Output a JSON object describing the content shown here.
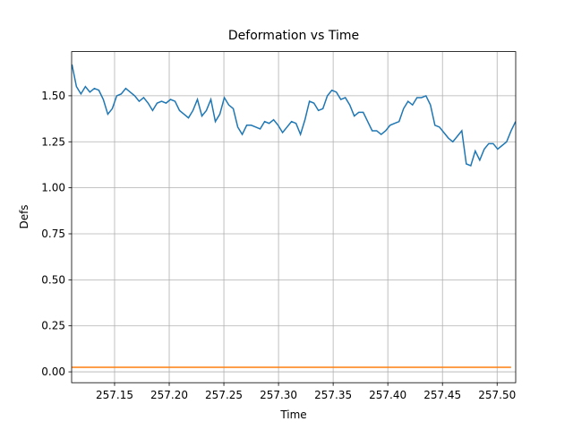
{
  "chart_data": {
    "type": "line",
    "title": "Deformation vs Time",
    "xlabel": "Time",
    "ylabel": "Defs",
    "xlim": [
      257.1107,
      257.517
    ],
    "ylim": [
      -0.059,
      1.74
    ],
    "xticks": [
      257.15,
      {
        "value": 257.2,
        "label": "257.20"
      },
      257.25,
      {
        "value": 257.3,
        "label": "257.30"
      },
      257.35,
      {
        "value": 257.4,
        "label": "257.40"
      },
      257.45,
      {
        "value": 257.5,
        "label": "257.50"
      }
    ],
    "yticks": [
      {
        "value": 0,
        "label": "0.00"
      },
      0.25,
      {
        "value": 0.5,
        "label": "0.50"
      },
      0.75,
      {
        "value": 1,
        "label": "1.00"
      },
      1.25,
      {
        "value": 1.5,
        "label": "1.50"
      }
    ],
    "grid": true,
    "series": [
      {
        "color": "#1f77b4",
        "x": [
          257.111,
          257.1151,
          257.1192,
          257.1233,
          257.1274,
          257.1315,
          257.1356,
          257.1397,
          257.1438,
          257.1479,
          257.152,
          257.1561,
          257.1602,
          257.1643,
          257.1684,
          257.1725,
          257.1766,
          257.1807,
          257.1848,
          257.1889,
          257.193,
          257.1971,
          257.2012,
          257.2053,
          257.2094,
          257.2135,
          257.2176,
          257.2217,
          257.2258,
          257.2299,
          257.234,
          257.2381,
          257.2422,
          257.2463,
          257.2504,
          257.2545,
          257.2586,
          257.2627,
          257.2668,
          257.2709,
          257.275,
          257.2791,
          257.2832,
          257.2873,
          257.2914,
          257.2955,
          257.2996,
          257.3037,
          257.3078,
          257.3119,
          257.316,
          257.3201,
          257.3242,
          257.3283,
          257.3324,
          257.3365,
          257.3406,
          257.3447,
          257.3488,
          257.3529,
          257.357,
          257.3611,
          257.3652,
          257.3693,
          257.3734,
          257.3775,
          257.3816,
          257.3857,
          257.3898,
          257.3939,
          257.398,
          257.4021,
          257.4062,
          257.4103,
          257.4144,
          257.4185,
          257.4226,
          257.4267,
          257.4308,
          257.4349,
          257.439,
          257.4431,
          257.4472,
          257.4513,
          257.4554,
          257.4595,
          257.4636,
          257.4677,
          257.4718,
          257.4759,
          257.48,
          257.4841,
          257.4882,
          257.4923,
          257.4964,
          257.5005,
          257.5046,
          257.5087,
          257.5128,
          257.5169
        ],
        "values": [
          1.67,
          1.55,
          1.51,
          1.55,
          1.52,
          1.54,
          1.53,
          1.48,
          1.4,
          1.43,
          1.5,
          1.51,
          1.54,
          1.52,
          1.5,
          1.47,
          1.49,
          1.46,
          1.42,
          1.46,
          1.47,
          1.46,
          1.48,
          1.47,
          1.42,
          1.4,
          1.38,
          1.42,
          1.48,
          1.39,
          1.42,
          1.48,
          1.36,
          1.4,
          1.49,
          1.45,
          1.43,
          1.33,
          1.29,
          1.34,
          1.34,
          1.33,
          1.32,
          1.36,
          1.35,
          1.37,
          1.34,
          1.3,
          1.33,
          1.36,
          1.35,
          1.29,
          1.37,
          1.47,
          1.46,
          1.42,
          1.43,
          1.5,
          1.53,
          1.52,
          1.48,
          1.49,
          1.45,
          1.39,
          1.41,
          1.41,
          1.36,
          1.31,
          1.31,
          1.29,
          1.31,
          1.34,
          1.35,
          1.36,
          1.43,
          1.47,
          1.45,
          1.49,
          1.49,
          1.5,
          1.45,
          1.34,
          1.33,
          1.3,
          1.27,
          1.25,
          1.28,
          1.31,
          1.13,
          1.12,
          1.2,
          1.15,
          1.21,
          1.24,
          1.24,
          1.21,
          1.23,
          1.25,
          1.31,
          1.36
        ]
      },
      {
        "color": "#ff7f0e",
        "x": [
          257.111,
          257.5128
        ],
        "values": [
          0.025,
          0.025
        ]
      }
    ]
  }
}
